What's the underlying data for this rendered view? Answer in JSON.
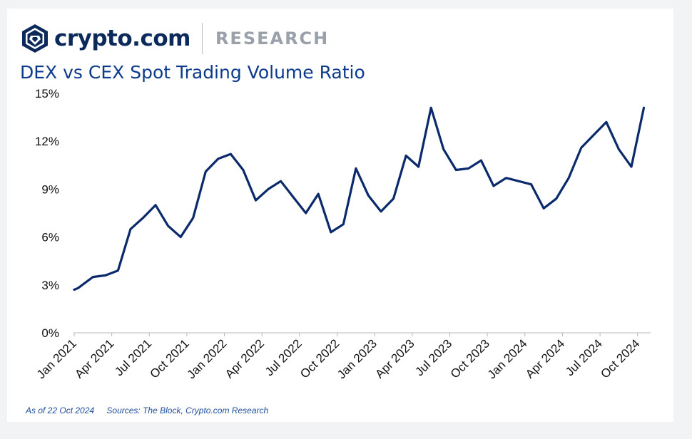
{
  "brand": {
    "name": "crypto.com",
    "section": "RESEARCH"
  },
  "colors": {
    "line": "#0b2a6b",
    "title": "#0b3b8a",
    "axis": "#b5b8bf"
  },
  "chart_data": {
    "type": "line",
    "title": "DEX vs CEX Spot Trading Volume Ratio",
    "xlabel": "",
    "ylabel": "",
    "ylim": [
      0,
      15
    ],
    "yticks": [
      0,
      3,
      6,
      9,
      12,
      15
    ],
    "ytick_labels": [
      "0%",
      "3%",
      "6%",
      "9%",
      "12%",
      "15%"
    ],
    "xtick_labels": [
      "Jan 2021",
      "Apr 2021",
      "Jul 2021",
      "Oct 2021",
      "Jan 2022",
      "Apr 2022",
      "Jul 2022",
      "Oct 2022",
      "Jan 2023",
      "Apr 2023",
      "Jul 2023",
      "Oct 2023",
      "Jan 2024",
      "Apr 2024",
      "Jul 2024",
      "Oct 2024"
    ],
    "grid": false,
    "series": [
      {
        "values": [
          2.7,
          2.8,
          3.5,
          3.6,
          3.9,
          6.5,
          7.2,
          8.0,
          6.7,
          6.0,
          7.2,
          10.1,
          10.9,
          11.2,
          10.2,
          8.3,
          9.0,
          9.5,
          8.5,
          7.5,
          8.7,
          6.3,
          6.8,
          10.3,
          8.6,
          7.6,
          8.4,
          11.1,
          10.4,
          14.1,
          11.5,
          10.2,
          10.3,
          10.8,
          9.2,
          9.7,
          9.5,
          9.3,
          7.8,
          8.4,
          9.7,
          11.6,
          12.4,
          13.2,
          11.5,
          10.4,
          14.1
        ],
        "x": [
          0,
          0.3,
          1.5,
          2.5,
          3.5,
          4.5,
          5.5,
          6.5,
          7.5,
          8.5,
          9.5,
          10.5,
          11.5,
          12.5,
          13.5,
          14.5,
          15.5,
          16.5,
          17.5,
          18.5,
          19.5,
          20.5,
          21.5,
          22.5,
          23.5,
          24.5,
          25.5,
          26.5,
          27.5,
          28.5,
          29.5,
          30.5,
          31.5,
          32.5,
          33.5,
          34.5,
          35.5,
          36.5,
          37.5,
          38.5,
          39.5,
          40.5,
          41.5,
          42.5,
          43.5,
          44.5,
          45.5
        ]
      }
    ]
  },
  "footnote": {
    "as_of": "As of 22 Oct 2024",
    "sources": "Sources: The Block, Crypto.com Research"
  }
}
